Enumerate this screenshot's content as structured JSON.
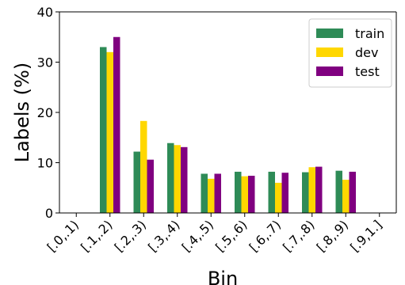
{
  "chart_data": {
    "type": "bar",
    "xlabel": "Bin",
    "ylabel": "Labels (%)",
    "ylim": [
      0,
      40
    ],
    "yticks": [
      0,
      10,
      20,
      30,
      40
    ],
    "grid": false,
    "legend_position": "top-right",
    "categories": [
      "[.0,.1)",
      "[.1,.2)",
      "[.2,.3)",
      "[.3,.4)",
      "[.4,.5)",
      "[.5,.6)",
      "[.6,.7)",
      "[.7,.8)",
      "[.8,.9)",
      "[.9,1.]"
    ],
    "series": [
      {
        "name": "train",
        "color": "#2e8b57",
        "values": [
          0,
          33.0,
          12.2,
          13.9,
          7.8,
          8.2,
          8.2,
          8.1,
          8.4,
          0
        ]
      },
      {
        "name": "dev",
        "color": "#ffd700",
        "values": [
          0,
          32.0,
          18.3,
          13.5,
          6.8,
          7.3,
          6.0,
          9.1,
          6.6,
          0
        ]
      },
      {
        "name": "test",
        "color": "#800080",
        "values": [
          0,
          35.0,
          10.6,
          13.1,
          7.8,
          7.4,
          8.0,
          9.2,
          8.2,
          0
        ]
      }
    ]
  }
}
